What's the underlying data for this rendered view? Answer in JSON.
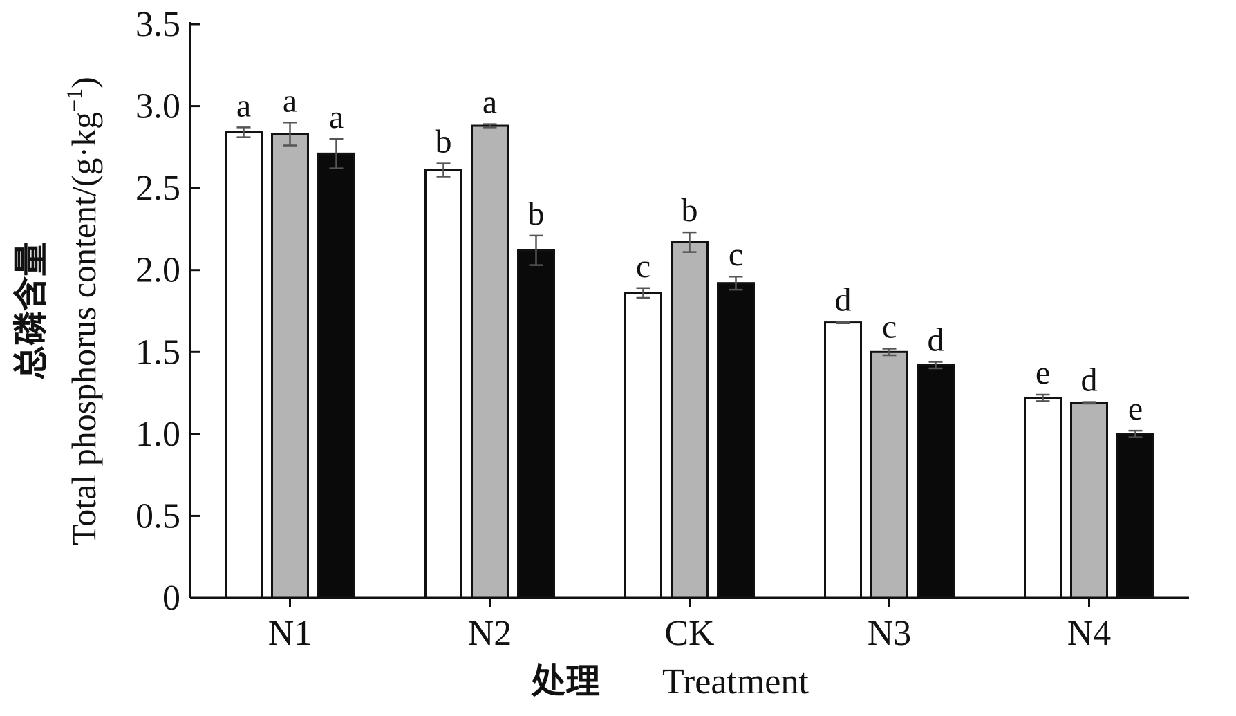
{
  "chart_data": {
    "type": "bar",
    "categories": [
      "N1",
      "N2",
      "CK",
      "N3",
      "N4"
    ],
    "ylim": [
      0,
      3.5
    ],
    "yticks": [
      "0",
      "0.5",
      "1.0",
      "1.5",
      "2.0",
      "2.5",
      "3.0",
      "3.5"
    ],
    "ylabel_zh": "总磷含量",
    "ylabel_en": "Total phosphorus content/(g·kg",
    "ylabel_sup": "−1",
    "ylabel_close": ")",
    "xlabel_zh": "处理",
    "xlabel_en": "Treatment",
    "grid": false,
    "legend": "none",
    "series": [
      {
        "color": "#ffffff",
        "values": [
          2.84,
          2.61,
          1.86,
          1.68,
          1.22
        ],
        "errors": [
          0.03,
          0.04,
          0.03,
          0.005,
          0.02
        ],
        "significance": [
          "a",
          "b",
          "c",
          "d",
          "e"
        ]
      },
      {
        "color": "#b4b4b4",
        "values": [
          2.83,
          2.88,
          2.17,
          1.5,
          1.19
        ],
        "errors": [
          0.07,
          0.01,
          0.06,
          0.02,
          0.005
        ],
        "significance": [
          "a",
          "a",
          "b",
          "c",
          "d"
        ]
      },
      {
        "color": "#0a0a0a",
        "values": [
          2.71,
          2.12,
          1.92,
          1.42,
          1.0
        ],
        "errors": [
          0.09,
          0.09,
          0.04,
          0.02,
          0.02
        ],
        "significance": [
          "a",
          "b",
          "c",
          "d",
          "e"
        ]
      }
    ]
  }
}
